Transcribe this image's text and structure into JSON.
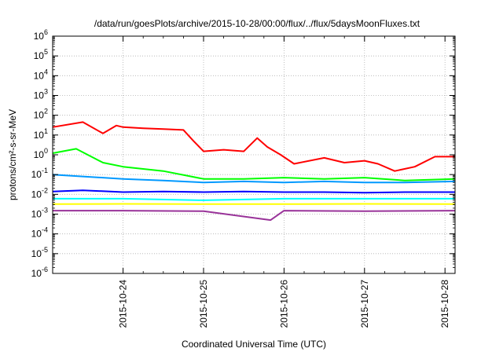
{
  "chart_data": {
    "type": "line",
    "title": "/data/run/goesPlots/archive/2015-10-28/00:00/flux/../flux/5daysMoonFluxes.txt",
    "xlabel": "Coordinated Universal Time (UTC)",
    "ylabel": "protons/cm²-s-sr-MeV",
    "yscale": "log",
    "ylim": [
      1e-06,
      1000000.0
    ],
    "xlim": [
      "2015-10-23T03:00",
      "2015-10-28T03:00"
    ],
    "grid": true,
    "x_ticks": [
      "2015-10-24",
      "2015-10-25",
      "2015-10-26",
      "2015-10-27",
      "2015-10-28"
    ],
    "y_ticks": [
      {
        "base": "10",
        "exp": "-6"
      },
      {
        "base": "10",
        "exp": "-5"
      },
      {
        "base": "10",
        "exp": "-4"
      },
      {
        "base": "10",
        "exp": "-3"
      },
      {
        "base": "10",
        "exp": "-2"
      },
      {
        "base": "10",
        "exp": "-1"
      },
      {
        "base": "10",
        "exp": "0"
      },
      {
        "base": "10",
        "exp": "1"
      },
      {
        "base": "10",
        "exp": "2"
      },
      {
        "base": "10",
        "exp": "3"
      },
      {
        "base": "10",
        "exp": "4"
      },
      {
        "base": "10",
        "exp": "5"
      },
      {
        "base": "10",
        "exp": "6"
      }
    ],
    "series": [
      {
        "color": "#ff0000",
        "x": [
          "2015-10-23T03:00",
          "2015-10-23T12:00",
          "2015-10-23T18:00",
          "2015-10-23T22:00",
          "2015-10-24T00:00",
          "2015-10-24T06:00",
          "2015-10-24T12:00",
          "2015-10-24T18:00",
          "2015-10-24T21:00",
          "2015-10-25T00:00",
          "2015-10-25T06:00",
          "2015-10-25T12:00",
          "2015-10-25T16:00",
          "2015-10-25T19:00",
          "2015-10-25T23:00",
          "2015-10-26T03:00",
          "2015-10-26T12:00",
          "2015-10-26T18:00",
          "2015-10-27T00:00",
          "2015-10-27T04:00",
          "2015-10-27T09:00",
          "2015-10-27T15:00",
          "2015-10-27T21:00",
          "2015-10-28T03:00"
        ],
        "y": [
          25,
          45,
          12,
          30,
          25,
          22,
          20,
          18,
          5,
          1.5,
          1.8,
          1.5,
          7,
          2.5,
          1.0,
          0.35,
          0.7,
          0.4,
          0.5,
          0.35,
          0.15,
          0.25,
          0.8,
          0.8
        ]
      },
      {
        "color": "#00ff00",
        "x": [
          "2015-10-23T03:00",
          "2015-10-23T10:00",
          "2015-10-23T18:00",
          "2015-10-24T00:00",
          "2015-10-24T12:00",
          "2015-10-25T00:00",
          "2015-10-25T12:00",
          "2015-10-26T00:00",
          "2015-10-26T12:00",
          "2015-10-27T00:00",
          "2015-10-27T12:00",
          "2015-10-28T03:00"
        ],
        "y": [
          1.2,
          2.0,
          0.4,
          0.25,
          0.15,
          0.06,
          0.06,
          0.07,
          0.06,
          0.07,
          0.05,
          0.06
        ]
      },
      {
        "color": "#0099ff",
        "x": [
          "2015-10-23T03:00",
          "2015-10-23T12:00",
          "2015-10-24T00:00",
          "2015-10-24T12:00",
          "2015-10-25T00:00",
          "2015-10-25T12:00",
          "2015-10-26T00:00",
          "2015-10-26T12:00",
          "2015-10-27T00:00",
          "2015-10-27T12:00",
          "2015-10-28T03:00"
        ],
        "y": [
          0.1,
          0.08,
          0.06,
          0.05,
          0.04,
          0.045,
          0.04,
          0.045,
          0.04,
          0.04,
          0.045
        ]
      },
      {
        "color": "#0000ff",
        "x": [
          "2015-10-23T03:00",
          "2015-10-23T12:00",
          "2015-10-24T00:00",
          "2015-10-24T12:00",
          "2015-10-25T00:00",
          "2015-10-25T12:00",
          "2015-10-26T00:00",
          "2015-10-26T12:00",
          "2015-10-27T00:00",
          "2015-10-27T12:00",
          "2015-10-28T03:00"
        ],
        "y": [
          0.014,
          0.016,
          0.013,
          0.014,
          0.013,
          0.014,
          0.013,
          0.013,
          0.012,
          0.013,
          0.013
        ]
      },
      {
        "color": "#00ffff",
        "x": [
          "2015-10-23T03:00",
          "2015-10-24T00:00",
          "2015-10-25T00:00",
          "2015-10-26T00:00",
          "2015-10-27T00:00",
          "2015-10-28T03:00"
        ],
        "y": [
          0.006,
          0.006,
          0.005,
          0.006,
          0.006,
          0.006
        ]
      },
      {
        "color": "#ffff00",
        "x": [
          "2015-10-23T03:00",
          "2015-10-24T00:00",
          "2015-10-25T00:00",
          "2015-10-26T00:00",
          "2015-10-27T00:00",
          "2015-10-28T03:00"
        ],
        "y": [
          0.0032,
          0.0033,
          0.0032,
          0.0032,
          0.0033,
          0.0032
        ]
      },
      {
        "color": "#993399",
        "x": [
          "2015-10-23T03:00",
          "2015-10-24T00:00",
          "2015-10-25T00:00",
          "2015-10-25T20:00",
          "2015-10-26T00:00",
          "2015-10-27T00:00",
          "2015-10-28T03:00"
        ],
        "y": [
          0.0015,
          0.0015,
          0.0014,
          0.0005,
          0.0015,
          0.0014,
          0.0015
        ]
      }
    ]
  }
}
